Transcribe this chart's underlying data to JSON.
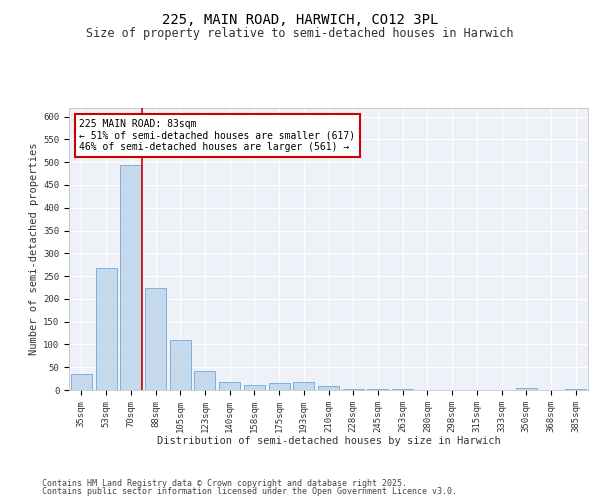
{
  "title1": "225, MAIN ROAD, HARWICH, CO12 3PL",
  "title2": "Size of property relative to semi-detached houses in Harwich",
  "xlabel": "Distribution of semi-detached houses by size in Harwich",
  "ylabel": "Number of semi-detached properties",
  "categories": [
    "35sqm",
    "53sqm",
    "70sqm",
    "88sqm",
    "105sqm",
    "123sqm",
    "140sqm",
    "158sqm",
    "175sqm",
    "193sqm",
    "210sqm",
    "228sqm",
    "245sqm",
    "263sqm",
    "280sqm",
    "298sqm",
    "315sqm",
    "333sqm",
    "350sqm",
    "368sqm",
    "385sqm"
  ],
  "values": [
    35,
    268,
    493,
    223,
    110,
    42,
    17,
    10,
    15,
    18,
    8,
    3,
    2,
    2,
    1,
    0,
    0,
    0,
    4,
    0,
    3
  ],
  "bar_color": "#c5d8ec",
  "bar_edge_color": "#5a9fd4",
  "subject_line_color": "#cc0000",
  "annotation_text": "225 MAIN ROAD: 83sqm\n← 51% of semi-detached houses are smaller (617)\n46% of semi-detached houses are larger (561) →",
  "annotation_box_color": "#cc0000",
  "ylim": [
    0,
    620
  ],
  "yticks": [
    0,
    50,
    100,
    150,
    200,
    250,
    300,
    350,
    400,
    450,
    500,
    550,
    600
  ],
  "background_color": "#eef2f8",
  "grid_color": "#ffffff",
  "footnote1": "Contains HM Land Registry data © Crown copyright and database right 2025.",
  "footnote2": "Contains public sector information licensed under the Open Government Licence v3.0.",
  "title1_fontsize": 10,
  "title2_fontsize": 8.5,
  "xlabel_fontsize": 7.5,
  "ylabel_fontsize": 7.5,
  "tick_fontsize": 6.5,
  "annotation_fontsize": 7,
  "footnote_fontsize": 6
}
